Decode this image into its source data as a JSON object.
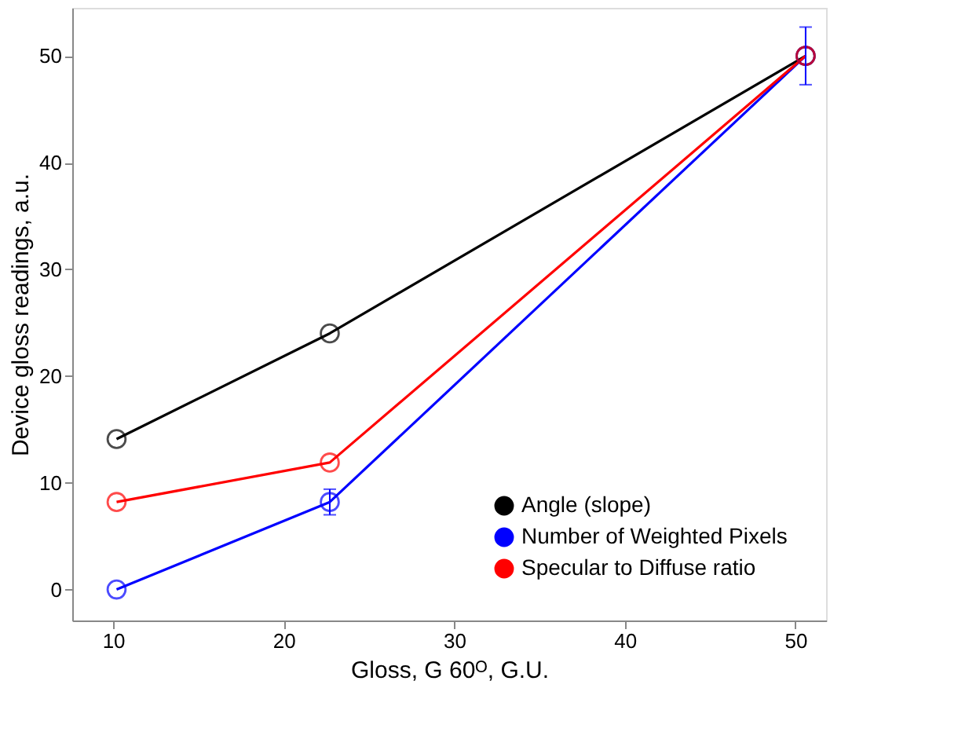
{
  "chart_data": {
    "type": "line",
    "xlabel": "Gloss, G 60ᴼ, G.U.",
    "ylabel": "Device gloss readings, a.u.",
    "x": [
      10.2,
      22.7,
      50.6
    ],
    "series": [
      {
        "name": "Angle (slope)",
        "color": "#000000",
        "values": [
          14.1,
          24.0,
          50.0
        ]
      },
      {
        "name": "Number of Weighted Pixels",
        "color": "#0000ff",
        "values": [
          0.0,
          8.2,
          50.0
        ],
        "errors": [
          null,
          1.2,
          2.7
        ]
      },
      {
        "name": "Specular to Diffuse ratio",
        "color": "#ff0000",
        "values": [
          8.2,
          11.9,
          50.0
        ]
      }
    ],
    "xlim": [
      7.6,
      51.8
    ],
    "ylim": [
      -2.9,
      54.5
    ],
    "xticks": [
      10,
      20,
      30,
      40,
      50
    ],
    "yticks": [
      0,
      10,
      20,
      30,
      40,
      50
    ],
    "grid": false,
    "legend": "bottom right",
    "marker": "circle",
    "line_style": "solid"
  }
}
